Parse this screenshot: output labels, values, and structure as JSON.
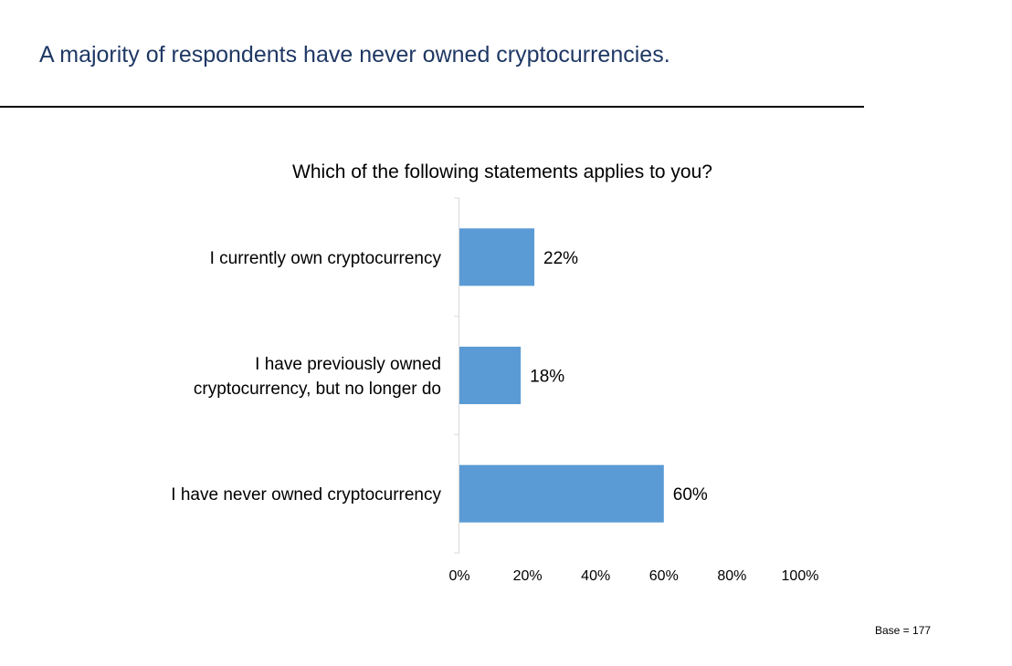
{
  "slide": {
    "title": "A majority of respondents have never owned cryptocurrencies.",
    "base_note": "Base = 177"
  },
  "chart_data": {
    "type": "bar",
    "orientation": "horizontal",
    "title": "Which of the following statements applies to you?",
    "categories": [
      [
        "I currently own cryptocurrency"
      ],
      [
        "I have previously owned",
        "cryptocurrency, but no longer do"
      ],
      [
        "I have never owned cryptocurrency"
      ]
    ],
    "values": [
      22,
      18,
      60
    ],
    "data_labels": [
      "22%",
      "18%",
      "60%"
    ],
    "xlim": [
      0,
      100
    ],
    "x_ticks": [
      0,
      20,
      40,
      60,
      80,
      100
    ],
    "x_tick_labels": [
      "0%",
      "20%",
      "40%",
      "60%",
      "80%",
      "100%"
    ],
    "bar_color": "#5b9bd5",
    "grid": false,
    "legend": "none"
  }
}
